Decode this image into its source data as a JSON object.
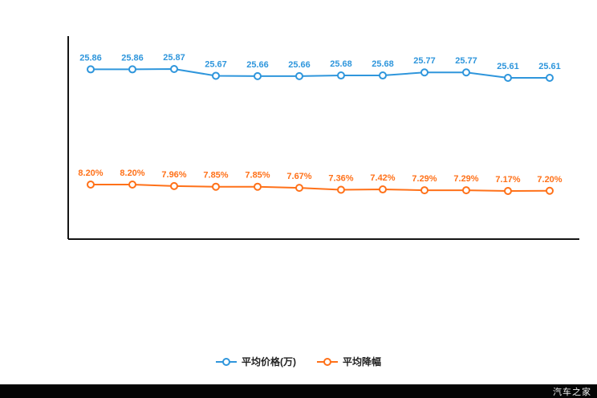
{
  "watermark": {
    "text": "汽车之家"
  },
  "legend": {
    "items": [
      {
        "label": "平均价格(万)",
        "color": "#2f96dc"
      },
      {
        "label": "平均降幅",
        "color": "#ff7119"
      }
    ]
  },
  "chart_data": {
    "type": "line",
    "title": "",
    "xlabel": "",
    "ylabel": "",
    "grid": false,
    "legend_position": "bottom",
    "x_axis": {
      "points": 12,
      "tick_labels_visible": false
    },
    "series": [
      {
        "name": "平均价格(万)",
        "color": "#2f96dc",
        "label_suffix": "",
        "values": [
          25.86,
          25.86,
          25.87,
          25.67,
          25.66,
          25.66,
          25.68,
          25.68,
          25.77,
          25.77,
          25.61,
          25.61
        ]
      },
      {
        "name": "平均降幅",
        "color": "#ff7119",
        "label_suffix": "%",
        "values": [
          8.2,
          8.2,
          7.96,
          7.85,
          7.85,
          7.67,
          7.36,
          7.42,
          7.29,
          7.29,
          7.17,
          7.2
        ]
      }
    ]
  }
}
